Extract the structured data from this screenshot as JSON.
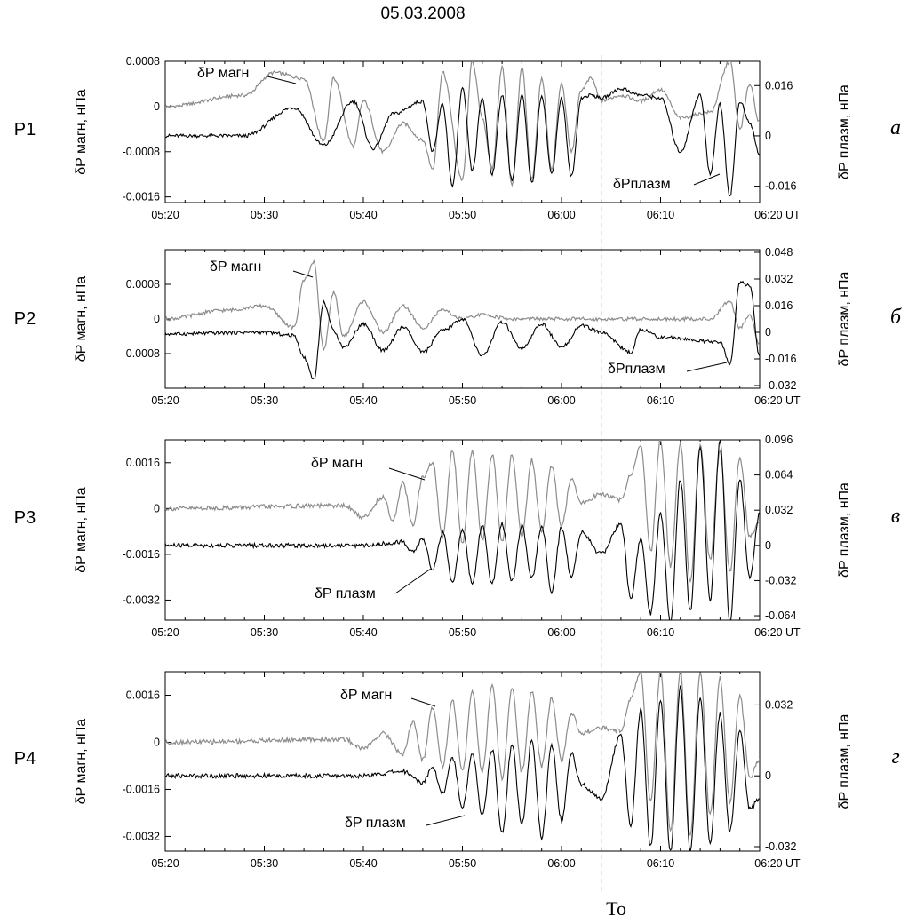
{
  "chart_data": {
    "title": "05.03.2008",
    "type": "line",
    "x_ticks": [
      "05:20",
      "05:30",
      "05:40",
      "05:50",
      "06:00",
      "06:10",
      "06:20 UT"
    ],
    "marker": {
      "label": "To",
      "time": "06:04"
    },
    "colors": {
      "magn": "#8c8c8c",
      "plasm": "#000000"
    },
    "panels": [
      {
        "probe": "P1",
        "letter": "а",
        "left_label": "δP магн, нПа",
        "right_label": "δP плазм, нПа",
        "left_range": [
          -0.0017,
          0.0008
        ],
        "right_range": [
          -0.0212,
          0.0237
        ],
        "left_ticks": [
          "0.0008",
          "0",
          "-0.0008",
          "-0.0016"
        ],
        "left_tick_values": [
          0.0008,
          0,
          -0.0008,
          -0.0016
        ],
        "right_ticks": [
          "0.016",
          "0",
          "-0.016"
        ],
        "right_tick_values": [
          0.016,
          0,
          -0.016
        ],
        "series": [
          {
            "name": "δP магн",
            "key": "magn",
            "scale": "left",
            "x": [
              "05:20",
              "05:28",
              "05:31",
              "05:34",
              "05:36",
              "05:37",
              "05:39",
              "05:40",
              "05:42",
              "05:44",
              "05:46",
              "05:47",
              "05:48",
              "05:50",
              "05:51",
              "05:52",
              "05:53",
              "05:54",
              "05:55",
              "05:56",
              "05:57",
              "05:58",
              "05:59",
              "06:00",
              "06:01",
              "06:02",
              "06:03",
              "06:04",
              "06:06",
              "06:08",
              "06:10",
              "06:12",
              "06:15",
              "06:17",
              "06:18",
              "06:19",
              "06:20"
            ],
            "y": [
              0,
              0.0002,
              0.0006,
              0.0005,
              -0.0006,
              0.0005,
              -0.0007,
              0.0001,
              -0.0008,
              -0.0003,
              -0.0006,
              -0.0011,
              0.0006,
              -0.0013,
              0.0008,
              -0.0002,
              -0.0011,
              0.0007,
              -0.0014,
              0.0007,
              -0.0013,
              0.0005,
              -0.0011,
              0.0004,
              -0.0008,
              0.0003,
              0.0005,
              0.0001,
              0.0002,
              0.0001,
              0.0003,
              -0.0002,
              -0.0001,
              0.0008,
              -0.0004,
              0.0004,
              -0.0003
            ]
          },
          {
            "name": "δP плазм",
            "key": "plasm",
            "scale": "right",
            "x": [
              "05:20",
              "05:28",
              "05:33",
              "05:36",
              "05:39",
              "05:41",
              "05:43",
              "05:46",
              "05:47",
              "05:48",
              "05:49",
              "05:50",
              "05:51",
              "05:52",
              "05:53",
              "05:54",
              "05:55",
              "05:56",
              "05:57",
              "05:58",
              "05:59",
              "06:00",
              "06:01",
              "06:02",
              "06:03",
              "06:04",
              "06:06",
              "06:08",
              "06:10",
              "06:12",
              "06:14",
              "06:15",
              "06:16",
              "06:17",
              "06:18",
              "06:19",
              "06:20"
            ],
            "y": [
              0,
              0,
              0.009,
              -0.003,
              0.011,
              -0.004,
              0.007,
              0.011,
              -0.005,
              0.01,
              -0.016,
              0.015,
              -0.011,
              0.012,
              -0.012,
              0.013,
              -0.014,
              0.013,
              -0.015,
              0.013,
              -0.012,
              0.012,
              -0.013,
              0.012,
              0.013,
              0.012,
              0.015,
              0.013,
              0.012,
              -0.005,
              0.013,
              -0.012,
              0.01,
              -0.019,
              0.011,
              0.004,
              -0.006
            ]
          }
        ],
        "annotations": [
          {
            "text": "δP магн",
            "series": "magn"
          },
          {
            "text": "δPплазм",
            "series": "plasm"
          }
        ]
      },
      {
        "probe": "P2",
        "letter": "б",
        "left_label": "δP магн, нПа",
        "right_label": "δP плазм, нПа",
        "left_range": [
          -0.0016,
          0.0016
        ],
        "right_range": [
          -0.0336,
          0.0496
        ],
        "left_ticks": [
          "0.0008",
          "0",
          "-0.0008"
        ],
        "left_tick_values": [
          0.0008,
          0,
          -0.0008
        ],
        "right_ticks": [
          "0.048",
          "0.032",
          "0.016",
          "0",
          "-0.016",
          "-0.032"
        ],
        "right_tick_values": [
          0.048,
          0.032,
          0.016,
          0,
          -0.016,
          -0.032
        ],
        "series": [
          {
            "name": "δP магн",
            "key": "magn",
            "scale": "left",
            "x": [
              "05:20",
              "05:26",
              "05:30",
              "05:33",
              "05:34",
              "05:35",
              "05:36",
              "05:37",
              "05:38",
              "05:40",
              "05:42",
              "05:44",
              "05:46",
              "05:48",
              "05:50",
              "05:52",
              "05:55",
              "06:00",
              "06:10",
              "06:15",
              "06:17",
              "06:18",
              "06:19",
              "06:20"
            ],
            "y": [
              0,
              0.0002,
              0.0003,
              -0.0002,
              0.0009,
              0.0013,
              -0.0007,
              0.0006,
              -0.0004,
              0.0004,
              -0.0003,
              0.0003,
              -0.0002,
              0.0002,
              0,
              0.0001,
              0,
              0,
              0,
              0,
              0.0004,
              -0.0002,
              0.0001,
              -0.0006
            ]
          },
          {
            "name": "δP плазм",
            "key": "plasm",
            "scale": "right",
            "x": [
              "05:20",
              "05:30",
              "05:33",
              "05:34",
              "05:35",
              "05:36",
              "05:37",
              "05:38",
              "05:40",
              "05:42",
              "05:44",
              "05:46",
              "05:48",
              "05:50",
              "05:52",
              "05:54",
              "05:56",
              "05:58",
              "06:00",
              "06:02",
              "06:04",
              "06:07",
              "06:08",
              "06:10",
              "06:16",
              "06:17",
              "06:18",
              "06:19",
              "06:20"
            ],
            "y": [
              -0.001,
              0,
              -0.002,
              -0.015,
              -0.028,
              0.018,
              0.001,
              -0.009,
              0.005,
              -0.011,
              0.003,
              -0.012,
              0.001,
              0.008,
              -0.014,
              0.006,
              -0.01,
              0.005,
              -0.009,
              0.004,
              0,
              -0.012,
              0.002,
              -0.003,
              -0.006,
              -0.019,
              0.03,
              0.028,
              -0.015
            ]
          }
        ],
        "annotations": [
          {
            "text": "δP магн",
            "series": "magn"
          },
          {
            "text": "δPплазм",
            "series": "plasm"
          }
        ]
      },
      {
        "probe": "P3",
        "letter": "в",
        "left_label": "δP магн, нПа",
        "right_label": "δP плазм, нПа",
        "left_range": [
          -0.0039,
          0.0024
        ],
        "right_range": [
          -0.068,
          0.096
        ],
        "left_ticks": [
          "0.0016",
          "0",
          "-0.0016",
          "-0.0032"
        ],
        "left_tick_values": [
          0.0016,
          0,
          -0.0016,
          -0.0032
        ],
        "right_ticks": [
          "0.096",
          "0.064",
          "0.032",
          "0",
          "-0.032",
          "-0.064"
        ],
        "right_tick_values": [
          0.096,
          0.064,
          0.032,
          0,
          -0.032,
          -0.064
        ],
        "series": [
          {
            "name": "δP магн",
            "key": "magn",
            "scale": "left",
            "x": [
              "05:20",
              "05:38",
              "05:40",
              "05:42",
              "05:43",
              "05:44",
              "05:45",
              "05:46",
              "05:47",
              "05:48",
              "05:49",
              "05:50",
              "05:51",
              "05:52",
              "05:53",
              "05:54",
              "05:55",
              "05:56",
              "05:57",
              "05:58",
              "05:59",
              "06:00",
              "06:01",
              "06:02",
              "06:04",
              "06:06",
              "06:07",
              "06:08",
              "06:09",
              "06:10",
              "06:11",
              "06:12",
              "06:13",
              "06:14",
              "06:15",
              "06:16",
              "06:17",
              "06:18",
              "06:19",
              "06:20"
            ],
            "y": [
              0,
              0.0001,
              -0.0003,
              0.0004,
              -0.0004,
              0.0009,
              -0.0006,
              0.0011,
              0.0016,
              -0.001,
              0.002,
              -0.0012,
              0.002,
              -0.0011,
              0.0019,
              -0.0012,
              0.0019,
              -0.001,
              0.0017,
              -0.0008,
              0.0015,
              -0.0006,
              0.001,
              0.0002,
              0.0005,
              0.0003,
              0.0012,
              0.0022,
              -0.0015,
              0.0024,
              -0.002,
              0.0023,
              -0.0025,
              0.0022,
              -0.0018,
              0.002,
              -0.0022,
              0.0018,
              -0.001,
              -0.0004
            ]
          },
          {
            "name": "δP плазм",
            "key": "plasm",
            "scale": "right",
            "x": [
              "05:20",
              "05:40",
              "05:44",
              "05:45",
              "05:46",
              "05:47",
              "05:48",
              "05:49",
              "05:50",
              "05:51",
              "05:52",
              "05:53",
              "05:54",
              "05:55",
              "05:56",
              "05:57",
              "05:58",
              "05:59",
              "06:00",
              "06:01",
              "06:02",
              "06:04",
              "06:06",
              "06:07",
              "06:08",
              "06:09",
              "06:10",
              "06:11",
              "06:12",
              "06:13",
              "06:14",
              "06:15",
              "06:16",
              "06:17",
              "06:18",
              "06:19",
              "06:20"
            ],
            "y": [
              0,
              0,
              0.003,
              -0.006,
              0.006,
              -0.022,
              0.012,
              -0.035,
              0.015,
              -0.035,
              0.018,
              -0.035,
              0.02,
              -0.033,
              0.018,
              -0.03,
              0.018,
              -0.042,
              0.016,
              -0.028,
              0.012,
              -0.008,
              0.02,
              -0.048,
              0.006,
              -0.062,
              0.03,
              -0.07,
              0.06,
              -0.06,
              0.09,
              -0.05,
              0.095,
              -0.07,
              0.06,
              -0.03,
              0.03
            ]
          }
        ],
        "annotations": [
          {
            "text": "δP магн",
            "series": "magn"
          },
          {
            "text": "δP плазм",
            "series": "plasm"
          }
        ]
      },
      {
        "probe": "P4",
        "letter": "г",
        "left_label": "δP магн, нПа",
        "right_label": "δP плазм, нПа",
        "left_range": [
          -0.0037,
          0.0024
        ],
        "right_range": [
          -0.034,
          0.047
        ],
        "left_ticks": [
          "0.0016",
          "0",
          "-0.0016",
          "-0.0032"
        ],
        "left_tick_values": [
          0.0016,
          0,
          -0.0016,
          -0.0032
        ],
        "right_ticks": [
          "0.032",
          "0",
          "-0.032"
        ],
        "right_tick_values": [
          0.032,
          0,
          -0.032
        ],
        "series": [
          {
            "name": "δP магн",
            "key": "magn",
            "scale": "left",
            "x": [
              "05:20",
              "05:38",
              "05:40",
              "05:42",
              "05:44",
              "05:45",
              "05:46",
              "05:47",
              "05:48",
              "05:49",
              "05:50",
              "05:51",
              "05:52",
              "05:53",
              "05:54",
              "05:55",
              "05:56",
              "05:57",
              "05:58",
              "05:59",
              "06:00",
              "06:01",
              "06:02",
              "06:04",
              "06:06",
              "06:07",
              "06:08",
              "06:09",
              "06:10",
              "06:11",
              "06:12",
              "06:13",
              "06:14",
              "06:15",
              "06:16",
              "06:17",
              "06:18",
              "06:19",
              "06:20"
            ],
            "y": [
              0,
              0.0001,
              -0.0002,
              0.0003,
              -0.0004,
              0.0007,
              -0.0006,
              0.0012,
              -0.0008,
              0.0014,
              -0.001,
              0.0017,
              -0.001,
              0.0019,
              -0.0012,
              0.0018,
              -0.001,
              0.0017,
              -0.0008,
              0.0015,
              -0.0006,
              0.001,
              0.0003,
              0.0005,
              0.0004,
              0.0015,
              0.0024,
              -0.002,
              0.0024,
              -0.003,
              0.0024,
              -0.0032,
              0.0024,
              -0.0025,
              0.0022,
              -0.002,
              0.0016,
              -0.0012,
              -0.0006
            ]
          },
          {
            "name": "δP плазм",
            "key": "plasm",
            "scale": "right",
            "x": [
              "05:20",
              "05:40",
              "05:44",
              "05:46",
              "05:47",
              "05:48",
              "05:49",
              "05:50",
              "05:51",
              "05:52",
              "05:53",
              "05:54",
              "05:55",
              "05:56",
              "05:57",
              "05:58",
              "05:59",
              "06:00",
              "06:01",
              "06:02",
              "06:04",
              "06:06",
              "06:07",
              "06:08",
              "06:09",
              "06:10",
              "06:11",
              "06:12",
              "06:13",
              "06:14",
              "06:15",
              "06:16",
              "06:17",
              "06:18",
              "06:19",
              "06:20"
            ],
            "y": [
              0,
              0,
              0.002,
              -0.003,
              0.004,
              -0.008,
              0.008,
              -0.014,
              0.01,
              -0.018,
              0.012,
              -0.026,
              0.014,
              -0.022,
              0.016,
              -0.028,
              0.014,
              -0.02,
              0.01,
              -0.004,
              -0.01,
              0.018,
              -0.022,
              0.03,
              -0.032,
              0.034,
              -0.034,
              0.04,
              -0.034,
              0.035,
              -0.03,
              0.028,
              -0.025,
              0.02,
              -0.015,
              -0.01
            ]
          }
        ],
        "annotations": [
          {
            "text": "δP магн",
            "series": "magn"
          },
          {
            "text": "δP плазм",
            "series": "plasm"
          }
        ]
      }
    ]
  }
}
